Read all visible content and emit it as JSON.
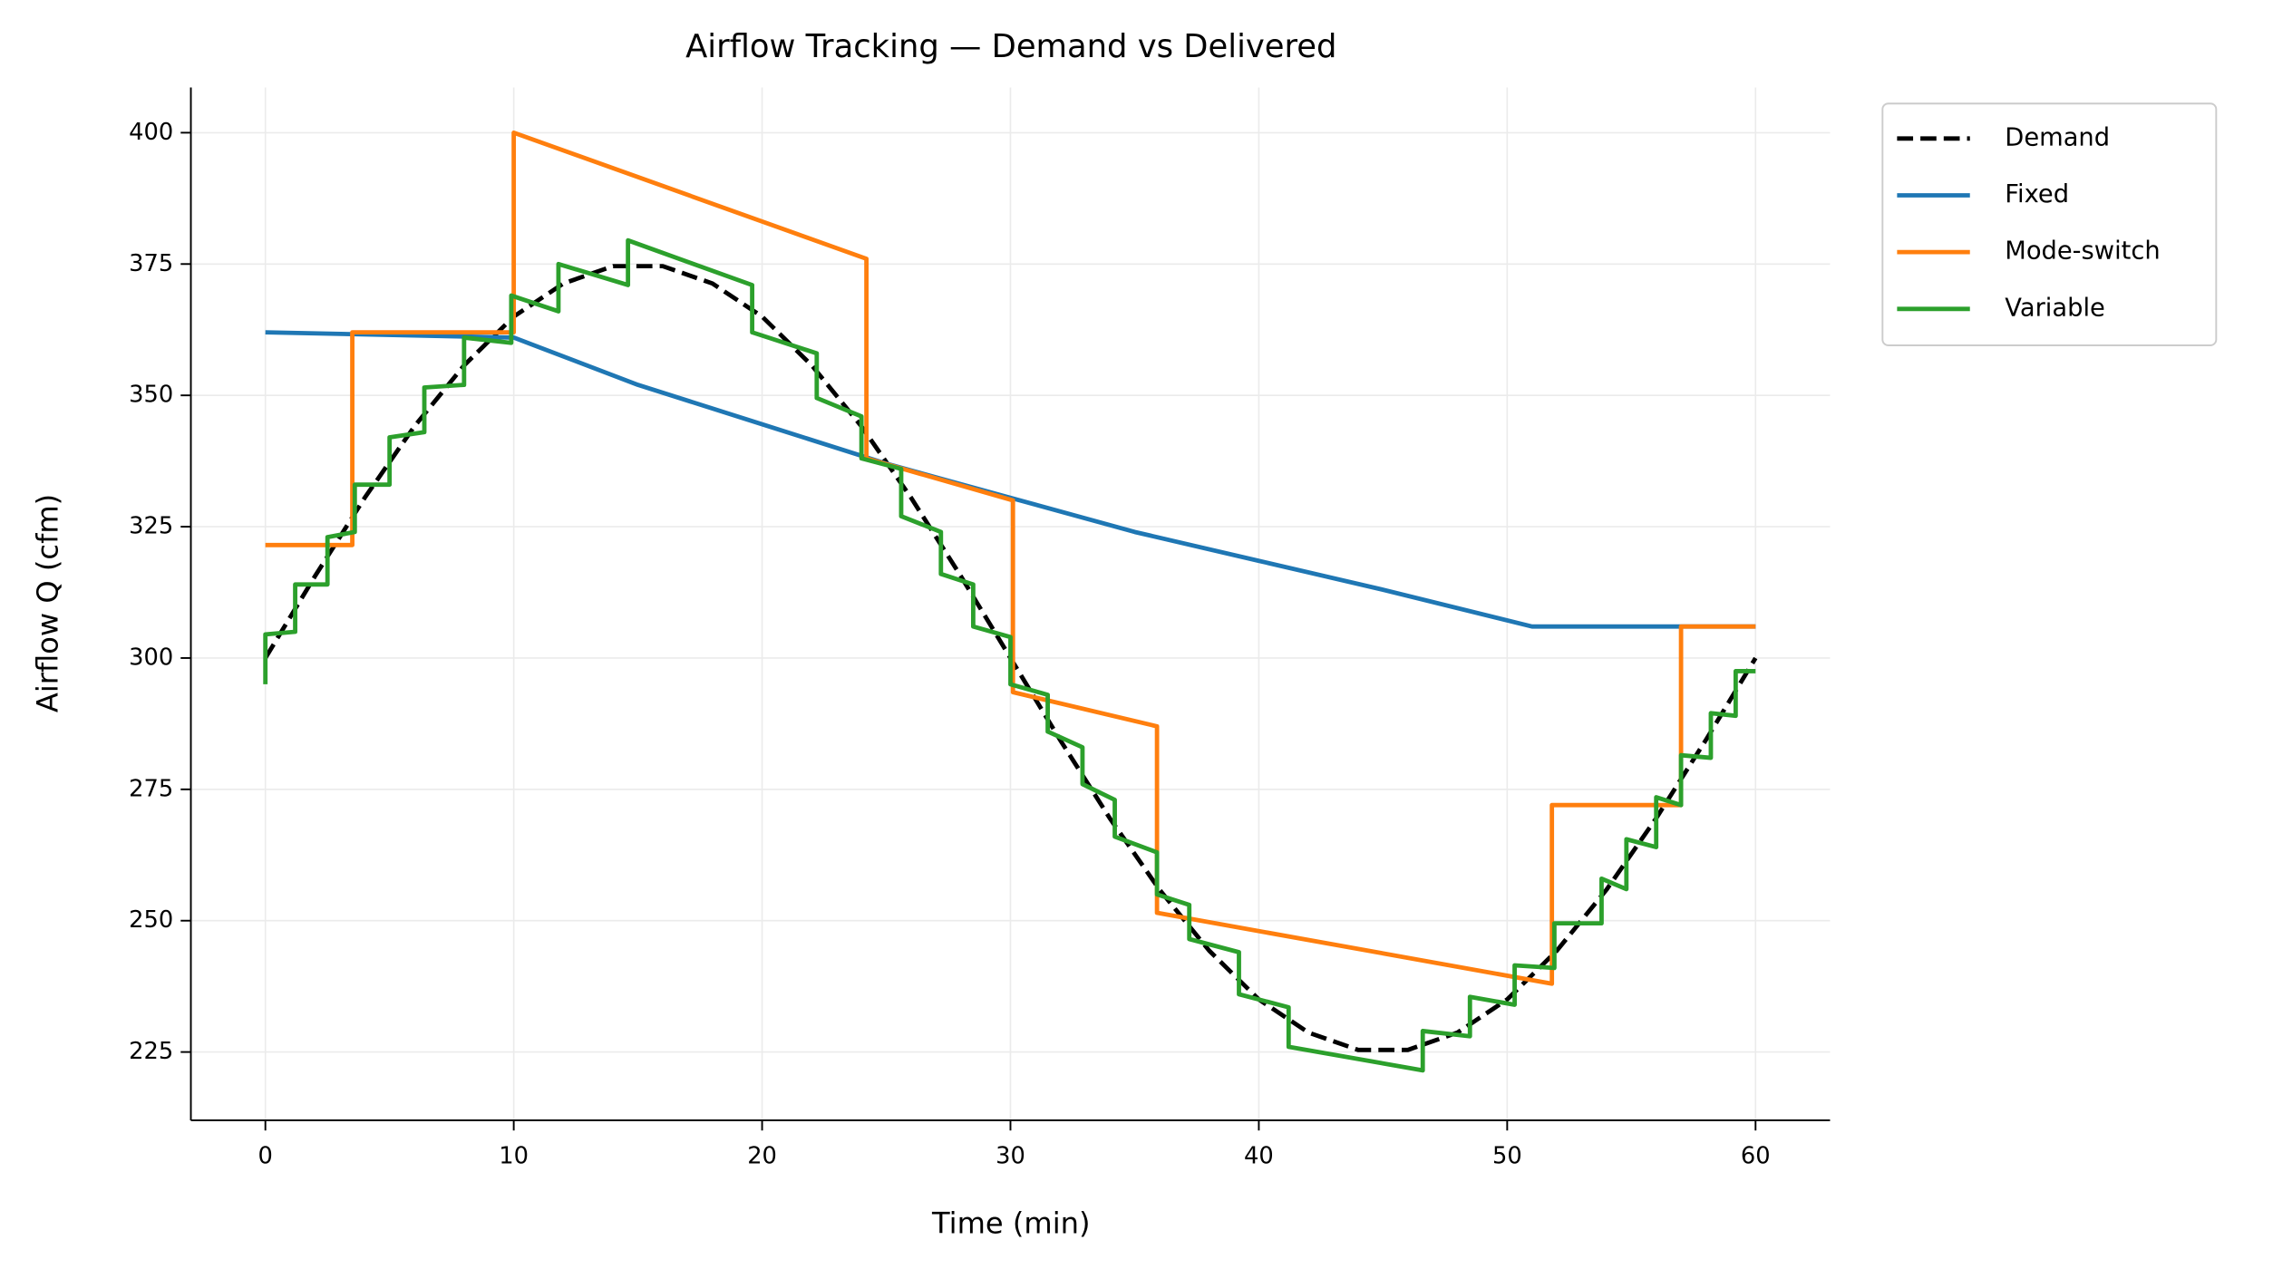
{
  "chart_data": {
    "type": "line",
    "title": "Airflow Tracking — Demand vs Delivered",
    "xlabel": "Time (min)",
    "ylabel": "Airflow Q (cfm)",
    "xlim": [
      -3,
      63
    ],
    "ylim": [
      212,
      408.6
    ],
    "xticks": [
      0,
      10,
      20,
      30,
      40,
      50,
      60
    ],
    "yticks": [
      225,
      250,
      275,
      300,
      325,
      350,
      375,
      400
    ],
    "grid": true,
    "legend": "outside-right",
    "series": [
      {
        "name": "Demand",
        "color": "#000000",
        "style": "dashed",
        "x": [
          0,
          2,
          4,
          6,
          8,
          10,
          12,
          14,
          16,
          18,
          20,
          22,
          24,
          26,
          28,
          30,
          32,
          34,
          36,
          38,
          40,
          42,
          44,
          46,
          48,
          50,
          52,
          54,
          56,
          58,
          60
        ],
        "values": [
          300,
          315.6,
          330.5,
          344.1,
          355.7,
          365,
          371.3,
          374.6,
          374.6,
          371.3,
          365,
          355.7,
          344.1,
          330.5,
          315.6,
          300,
          284.4,
          269.5,
          255.9,
          244.3,
          235,
          228.7,
          225.4,
          225.4,
          228.7,
          235,
          244.3,
          255.9,
          269.5,
          284.4,
          300
        ]
      },
      {
        "name": "Fixed",
        "color": "#1f77b4",
        "style": "solid",
        "x": [
          0,
          10,
          15,
          20,
          25,
          30,
          35,
          40,
          45,
          51,
          60
        ],
        "values": [
          362,
          361,
          352,
          344.5,
          337,
          330.5,
          324,
          318.5,
          313,
          306,
          306
        ]
      },
      {
        "name": "Mode-switch",
        "color": "#ff7f0e",
        "style": "solid",
        "x": [
          0,
          3.5,
          3.5,
          10,
          10,
          24.2,
          24.2,
          30.1,
          30.1,
          35.9,
          35.9,
          51.8,
          51.8,
          57,
          57,
          60
        ],
        "values": [
          321.5,
          321.5,
          362,
          362,
          400,
          376,
          338,
          330,
          293.5,
          287,
          251.5,
          238,
          272,
          272,
          306,
          306
        ]
      },
      {
        "name": "Variable",
        "color": "#2ca02c",
        "style": "solid",
        "x": [
          0,
          0,
          1.2,
          1.2,
          2.5,
          2.5,
          3.6,
          3.6,
          5,
          5,
          6.4,
          6.4,
          8,
          8,
          9.9,
          9.9,
          11.8,
          11.8,
          14.6,
          14.6,
          19.6,
          19.6,
          22.2,
          22.2,
          24,
          24,
          25.6,
          25.6,
          27.2,
          27.2,
          28.5,
          28.5,
          30,
          30,
          31.5,
          31.5,
          32.9,
          32.9,
          34.2,
          34.2,
          35.9,
          35.9,
          37.2,
          37.2,
          39.2,
          39.2,
          41.2,
          41.2,
          46.6,
          46.6,
          48.5,
          48.5,
          50.3,
          50.3,
          51.9,
          51.9,
          53.8,
          53.8,
          54.8,
          54.8,
          56,
          56,
          57,
          57,
          58.2,
          58.2,
          59.2,
          59.2,
          60
        ],
        "values": [
          295,
          304.5,
          305,
          314,
          314,
          323,
          324,
          333,
          333,
          342,
          343,
          351.5,
          352,
          361,
          360,
          369,
          366,
          375,
          371,
          379.5,
          371,
          362,
          358,
          349.5,
          346,
          338,
          336,
          327,
          324,
          316,
          314,
          306,
          304,
          295,
          293,
          286,
          283,
          276,
          273,
          266,
          263,
          255,
          253,
          246.5,
          244,
          236,
          233.5,
          226,
          221.5,
          229,
          228,
          235.5,
          234,
          241.5,
          241,
          249.5,
          249.5,
          258,
          256,
          265.5,
          264,
          273.5,
          272,
          281.5,
          281,
          289.5,
          289,
          297.5,
          297.5
        ]
      }
    ]
  }
}
